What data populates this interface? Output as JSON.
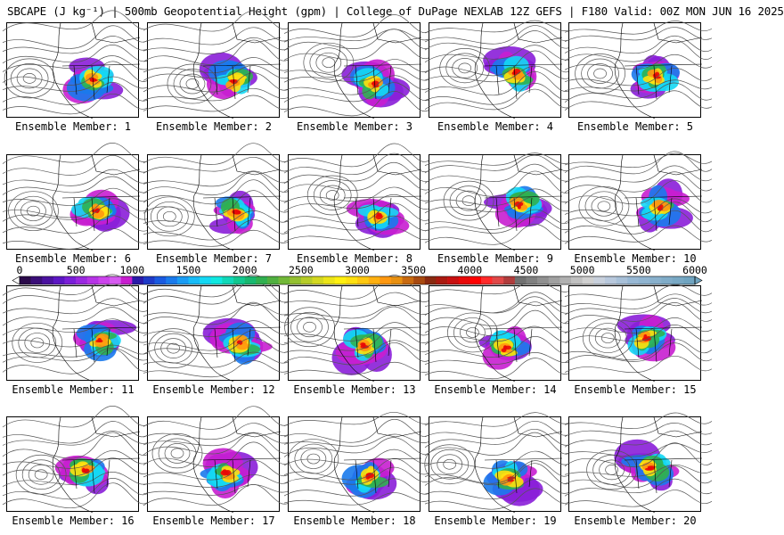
{
  "title": "SBCAPE (J kg⁻¹) | 500mb Geopotential Height (gpm) | College of DuPage NEXLAB 12Z GEFS | F180 Valid: 00Z MON JUN 16 2025",
  "panels": [
    {
      "label": "Ensemble Member: 1"
    },
    {
      "label": "Ensemble Member: 2"
    },
    {
      "label": "Ensemble Member: 3"
    },
    {
      "label": "Ensemble Member: 4"
    },
    {
      "label": "Ensemble Member: 5"
    },
    {
      "label": "Ensemble Member: 6"
    },
    {
      "label": "Ensemble Member: 7"
    },
    {
      "label": "Ensemble Member: 8"
    },
    {
      "label": "Ensemble Member: 9"
    },
    {
      "label": "Ensemble Member: 10"
    },
    {
      "label": "Ensemble Member: 11"
    },
    {
      "label": "Ensemble Member: 12"
    },
    {
      "label": "Ensemble Member: 13"
    },
    {
      "label": "Ensemble Member: 14"
    },
    {
      "label": "Ensemble Member: 15"
    },
    {
      "label": "Ensemble Member: 16"
    },
    {
      "label": "Ensemble Member: 17"
    },
    {
      "label": "Ensemble Member: 18"
    },
    {
      "label": "Ensemble Member: 19"
    },
    {
      "label": "Ensemble Member: 20"
    }
  ],
  "colorbar": {
    "tick_labels": [
      "0",
      "500",
      "1000",
      "1500",
      "2000",
      "2500",
      "3000",
      "3500",
      "4000",
      "4500",
      "5000",
      "5500",
      "6000"
    ],
    "min": 0,
    "max": 6000,
    "step": 100,
    "colors": [
      "#2a0a4a",
      "#3a0e78",
      "#4b12a0",
      "#5c16c4",
      "#7a1ed8",
      "#9a28e0",
      "#b634e6",
      "#cc44ec",
      "#d65af0",
      "#c81ed0",
      "#2a1aa8",
      "#1e3ac8",
      "#1a5ae0",
      "#1a7aec",
      "#1a9cf4",
      "#18bcf8",
      "#14d8f4",
      "#10e8e0",
      "#10d8b8",
      "#12c890",
      "#18b870",
      "#30b050",
      "#50b040",
      "#72b838",
      "#94c030",
      "#b6cc28",
      "#d4d820",
      "#ece418",
      "#fff010",
      "#ffe010",
      "#ffc810",
      "#ffb010",
      "#ff9810",
      "#e89010",
      "#c86a10",
      "#a84a10",
      "#8a2a10",
      "#aa1a10",
      "#c81010",
      "#e80808",
      "#ff0000",
      "#ff2a2a",
      "#e04848",
      "#b03c3c",
      "#707070",
      "#808080",
      "#909090",
      "#a0a0a0",
      "#b0b0b0",
      "#c0c0c0",
      "#d0d0d0",
      "#c8d0dc",
      "#b8c8dc",
      "#a8c0d8",
      "#98b8d4",
      "#90b4d0",
      "#88b0cc",
      "#80acc8",
      "#78a8c4",
      "#70a4c0"
    ]
  }
}
